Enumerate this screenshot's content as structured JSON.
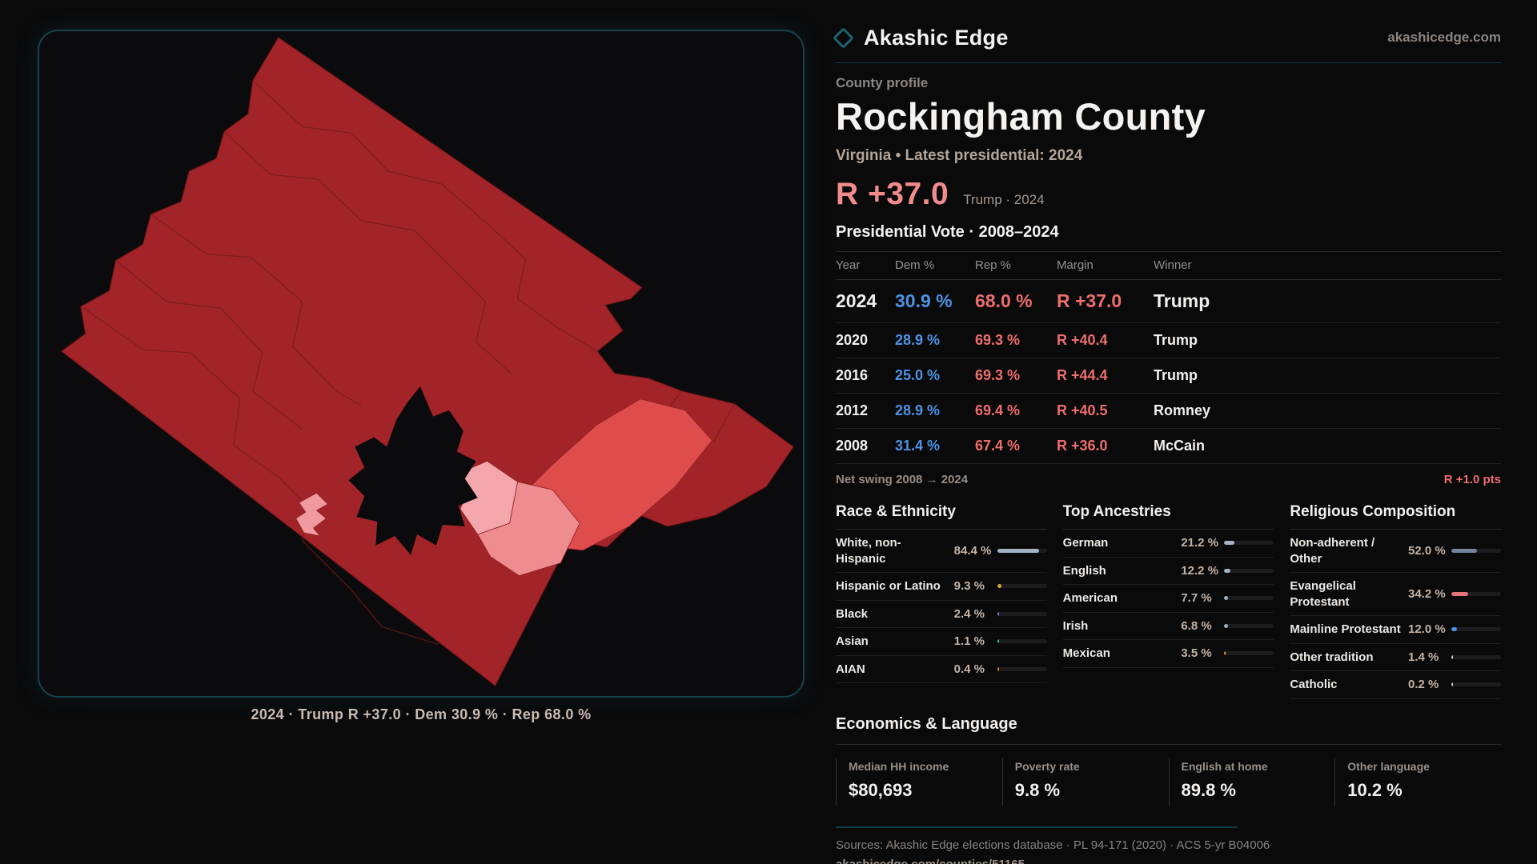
{
  "brand": {
    "name": "Akashic Edge",
    "domain": "akashicedge.com",
    "accent_teal": "#16444d"
  },
  "header": {
    "eyebrow": "County profile",
    "title": "Rockingham County",
    "subtitle": "Virginia • Latest presidential: 2024"
  },
  "headline": {
    "value": "R +37.0",
    "note": "Trump · 2024",
    "color": "#f28b8b"
  },
  "vote_table": {
    "title": "Presidential Vote · 2008–2024",
    "columns": [
      "Year",
      "Dem %",
      "Rep %",
      "Margin",
      "Winner"
    ],
    "rows": [
      {
        "year": "2024",
        "dem": "30.9 %",
        "rep": "68.0 %",
        "margin": "R +37.0",
        "winner": "Trump"
      },
      {
        "year": "2020",
        "dem": "28.9 %",
        "rep": "69.3 %",
        "margin": "R +40.4",
        "winner": "Trump"
      },
      {
        "year": "2016",
        "dem": "25.0 %",
        "rep": "69.3 %",
        "margin": "R +44.4",
        "winner": "Trump"
      },
      {
        "year": "2012",
        "dem": "28.9 %",
        "rep": "69.4 %",
        "margin": "R +40.5",
        "winner": "Romney"
      },
      {
        "year": "2008",
        "dem": "31.4 %",
        "rep": "67.4 %",
        "margin": "R +36.0",
        "winner": "McCain"
      }
    ],
    "dem_color": "#4d92e4",
    "rep_color": "#ee6d6d",
    "net_swing_label": "Net swing 2008 → 2024",
    "net_swing_value": "R +1.0 pts"
  },
  "demographics": [
    {
      "title": "Race & Ethnicity",
      "rows": [
        {
          "label": "White, non-Hispanic",
          "display": "84.4 %",
          "pct": 84.4,
          "color": "#a4b2c6"
        },
        {
          "label": "Hispanic or Latino",
          "display": "9.3 %",
          "pct": 9.3,
          "color": "#e2a43c"
        },
        {
          "label": "Black",
          "display": "2.4 %",
          "pct": 2.4,
          "color": "#8a7ce0"
        },
        {
          "label": "Asian",
          "display": "1.1 %",
          "pct": 1.1,
          "color": "#2fc7a6"
        },
        {
          "label": "AIAN",
          "display": "0.4 %",
          "pct": 0.4,
          "color": "#d88b3a"
        }
      ]
    },
    {
      "title": "Top Ancestries",
      "rows": [
        {
          "label": "German",
          "display": "21.2 %",
          "pct": 21.2,
          "color": "#a4b2c6"
        },
        {
          "label": "English",
          "display": "12.2 %",
          "pct": 12.2,
          "color": "#a4b2c6"
        },
        {
          "label": "American",
          "display": "7.7 %",
          "pct": 7.7,
          "color": "#a4b2c6"
        },
        {
          "label": "Irish",
          "display": "6.8 %",
          "pct": 6.8,
          "color": "#a4b2c6"
        },
        {
          "label": "Mexican",
          "display": "3.5 %",
          "pct": 3.5,
          "color": "#e2a43c"
        }
      ]
    },
    {
      "title": "Religious Composition",
      "rows": [
        {
          "label": "Non-adherent / Other",
          "display": "52.0 %",
          "pct": 52.0,
          "color": "#76839d"
        },
        {
          "label": "Evangelical Protestant",
          "display": "34.2 %",
          "pct": 34.2,
          "color": "#e4737b"
        },
        {
          "label": "Mainline Protestant",
          "display": "12.0 %",
          "pct": 12.0,
          "color": "#4d90e8"
        },
        {
          "label": "Other tradition",
          "display": "1.4 %",
          "pct": 1.4,
          "color": "#cfcfcf"
        },
        {
          "label": "Catholic",
          "display": "0.2 %",
          "pct": 0.2,
          "color": "#cfcfcf"
        }
      ]
    }
  ],
  "economics": {
    "title": "Economics & Language",
    "stats": [
      {
        "label": "Median HH income",
        "value": "$80,693"
      },
      {
        "label": "Poverty rate",
        "value": "9.8 %"
      },
      {
        "label": "English at home",
        "value": "89.8 %"
      },
      {
        "label": "Other language",
        "value": "10.2 %"
      }
    ]
  },
  "footer": {
    "sources": "Sources: Akashic Edge elections database · PL 94-171 (2020) · ACS 5-yr B04006",
    "permalink": "akashicedge.com/counties/51165"
  },
  "map": {
    "caption": "2024 · Trump R +37.0 · Dem 30.9 % · Rep 68.0 %",
    "base_fill": "#a32428",
    "lean_rep_fill": "#df4c4c",
    "light_rep_fill": "#ee8c8f",
    "lighter_rep_fill": "#f3a7ad",
    "excluded_fill": "#0b0b0d",
    "border_teal": "#16444d"
  }
}
